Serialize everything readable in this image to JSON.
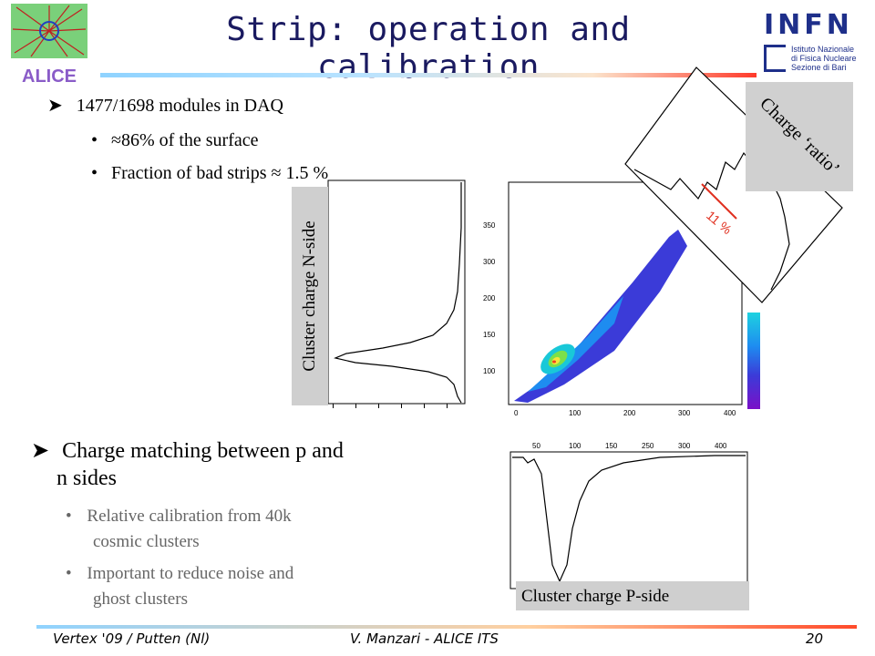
{
  "title": "Strip: operation and calibration",
  "bullets_top": {
    "main": "1477/1698 modules in DAQ",
    "sub": [
      "≈86% of the surface",
      "Fraction of bad strips ≈ 1.5 %"
    ]
  },
  "bullets_bottom": {
    "main_line1": "Charge matching between p and",
    "main_line2": "n sides",
    "sub1_line1": "Relative calibration from 40k",
    "sub1_line2": "cosmic clusters",
    "sub2_line1": "Important to reduce noise and",
    "sub2_line2": "ghost clusters"
  },
  "labels": {
    "n_side": "Cluster charge N-side",
    "p_side": "Cluster charge P-side",
    "ratio": "Charge ‘ratio’",
    "percent": "11 %"
  },
  "logos": {
    "alice": "ALICE",
    "infn": "INFN",
    "infn_sub1": "Istituto Nazionale",
    "infn_sub2": "di Fisica Nucleare",
    "infn_sub3": "Sezione di Bari"
  },
  "footer": {
    "left": "Vertex '09 / Putten (Nl)",
    "center": "V. Manzari - ALICE ITS",
    "page": "20"
  },
  "colors": {
    "title": "#1a1a60",
    "accent_red": "#e03020",
    "infn_blue": "#1e2f8a"
  }
}
